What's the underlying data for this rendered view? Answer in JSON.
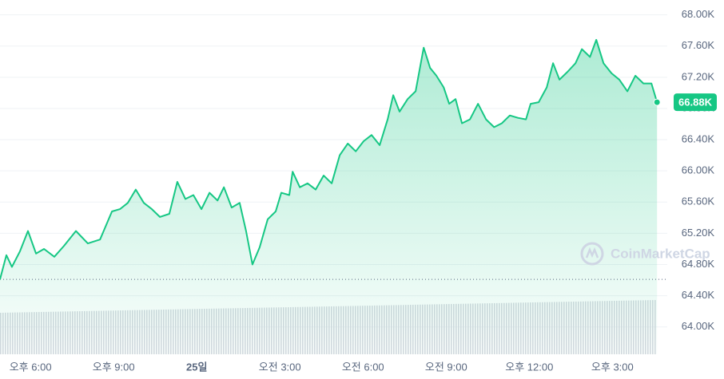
{
  "chart_data": {
    "type": "line",
    "x": [
      16.9,
      17.13,
      17.33,
      17.62,
      17.91,
      18.2,
      18.49,
      18.86,
      19.21,
      19.64,
      20.07,
      20.51,
      20.94,
      21.23,
      21.51,
      21.8,
      22.09,
      22.38,
      22.67,
      23.01,
      23.3,
      23.59,
      23.88,
      24.17,
      24.46,
      24.75,
      24.98,
      25.26,
      25.55,
      25.78,
      26.01,
      26.27,
      26.56,
      26.85,
      27.05,
      27.34,
      27.46,
      27.72,
      28.0,
      28.29,
      28.58,
      28.87,
      29.16,
      29.45,
      29.74,
      30.02,
      30.31,
      30.6,
      30.89,
      31.09,
      31.32,
      31.61,
      31.9,
      32.19,
      32.42,
      32.65,
      32.91,
      33.11,
      33.34,
      33.57,
      33.86,
      34.15,
      34.44,
      34.73,
      35.01,
      35.3,
      35.59,
      35.88,
      36.05,
      36.34,
      36.63,
      36.86,
      37.09,
      37.38,
      37.67,
      37.9,
      38.19,
      38.42,
      38.68,
      38.97,
      39.25,
      39.54,
      39.83,
      40.12,
      40.41,
      40.61
    ],
    "series": [
      {
        "color": "#16c784",
        "values": [
          64610,
          64920,
          64770,
          64970,
          65230,
          64940,
          65000,
          64900,
          65040,
          65230,
          65070,
          65120,
          65480,
          65510,
          65590,
          65760,
          65590,
          65510,
          65410,
          65450,
          65860,
          65640,
          65690,
          65510,
          65720,
          65620,
          65790,
          65530,
          65590,
          65230,
          64800,
          65020,
          65380,
          65480,
          65720,
          65690,
          65990,
          65790,
          65840,
          65760,
          65940,
          65840,
          66200,
          66350,
          66250,
          66380,
          66460,
          66330,
          66660,
          66970,
          66760,
          66920,
          67020,
          67580,
          67320,
          67220,
          67070,
          66860,
          66920,
          66610,
          66660,
          66860,
          66660,
          66560,
          66610,
          66710,
          66680,
          66660,
          66860,
          66880,
          67070,
          67380,
          67170,
          67270,
          67380,
          67560,
          67460,
          67680,
          67380,
          67250,
          67170,
          67020,
          67220,
          67120,
          67120,
          66880
        ]
      }
    ],
    "last_label": "66.88K",
    "xlim": [
      16.9,
      40.98
    ],
    "ylim": [
      63650,
      68190
    ],
    "xticks": [
      {
        "value": 18,
        "label": "오후 6:00"
      },
      {
        "value": 21,
        "label": "오후 9:00"
      },
      {
        "value": 24,
        "label": "25일"
      },
      {
        "value": 27,
        "label": "오전 3:00"
      },
      {
        "value": 30,
        "label": "오전 6:00"
      },
      {
        "value": 33,
        "label": "오전 9:00"
      },
      {
        "value": 36,
        "label": "오후 12:00"
      },
      {
        "value": 39,
        "label": "오후 3:00"
      }
    ],
    "yticks": [
      {
        "value": 64000,
        "label": "64.00K"
      },
      {
        "value": 64400,
        "label": "64.40K"
      },
      {
        "value": 64800,
        "label": "64.80K"
      },
      {
        "value": 65200,
        "label": "65.20K"
      },
      {
        "value": 65600,
        "label": "65.60K"
      },
      {
        "value": 66000,
        "label": "66.00K"
      },
      {
        "value": 66400,
        "label": "66.40K"
      },
      {
        "value": 66800,
        "label": "66.80K"
      },
      {
        "value": 67200,
        "label": "67.20K"
      },
      {
        "value": 67600,
        "label": "67.60K"
      },
      {
        "value": 68000,
        "label": "68.00K"
      }
    ],
    "grid": true,
    "watermark": "CoinMarketCap"
  }
}
